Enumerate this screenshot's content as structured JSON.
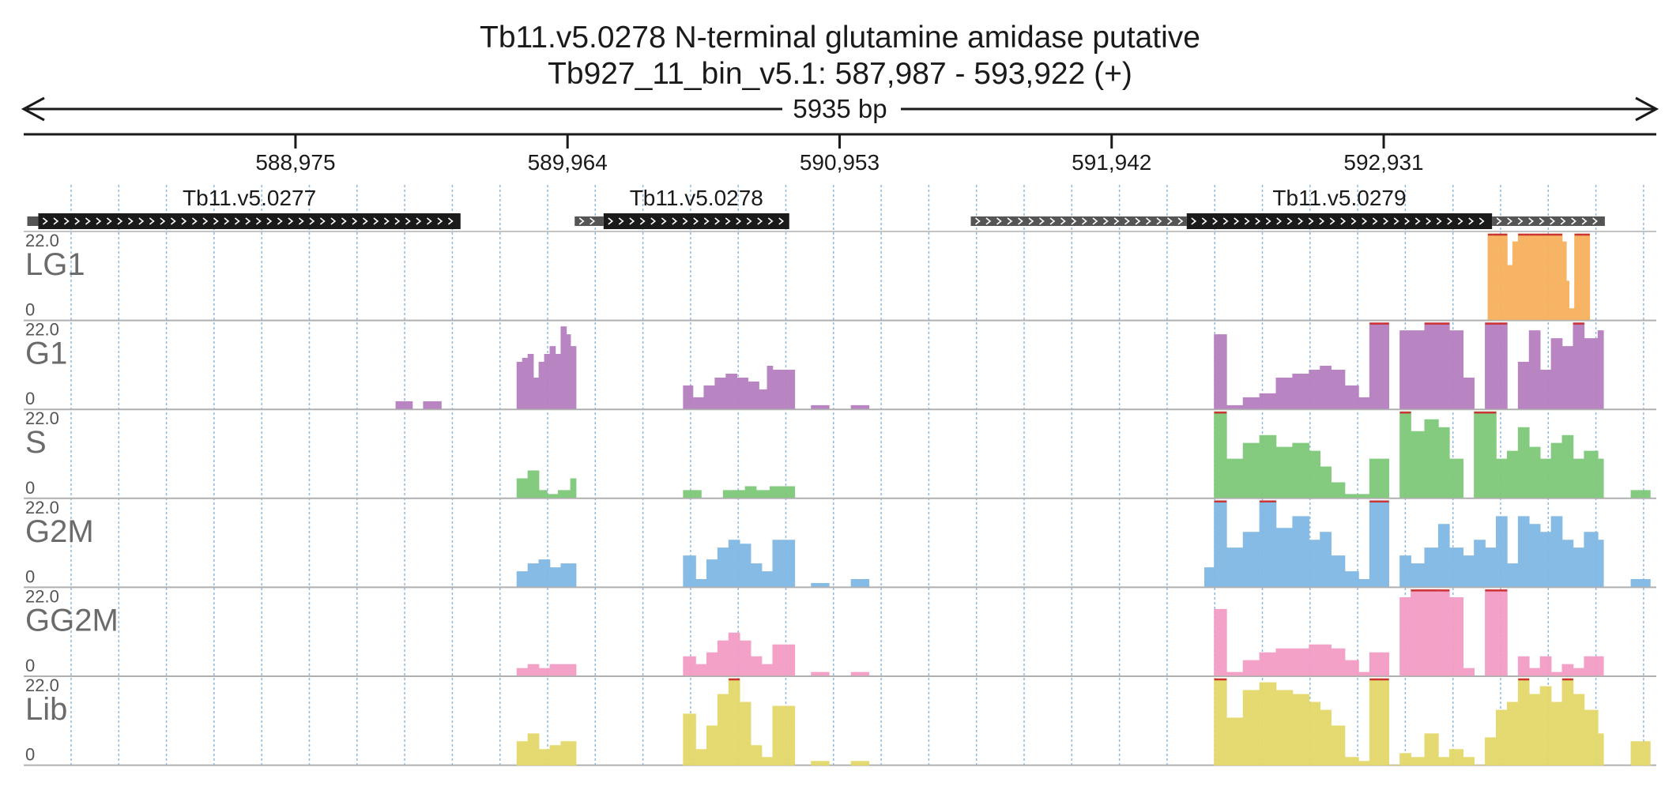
{
  "header": {
    "title": "Tb11.v5.0278  N-terminal glutamine amidase  putative",
    "locus": "Tb927_11_bin_v5.1: 587,987 - 593,922 (+)",
    "span": "5935 bp"
  },
  "colors": {
    "grid": "#8fb8e0",
    "track_border": "#b0b0b0",
    "gene_cds": "#1a1a1a",
    "gene_utr": "#555555",
    "clip_marker": "#cc3333"
  },
  "ruler": {
    "start": 587987,
    "end": 593922,
    "ticks": [
      {
        "pos": 588975,
        "label": "588,975"
      },
      {
        "pos": 589964,
        "label": "589,964"
      },
      {
        "pos": 590953,
        "label": "590,953"
      },
      {
        "pos": 591942,
        "label": "591,942"
      },
      {
        "pos": 592931,
        "label": "592,931"
      }
    ]
  },
  "genes": [
    {
      "name": "Tb11.v5.0277",
      "utr5": [
        588000,
        588040
      ],
      "cds": [
        588040,
        589575
      ],
      "utr3": null
    },
    {
      "name": "Tb11.v5.0278",
      "utr5": [
        589990,
        590095
      ],
      "cds": [
        590095,
        590770
      ],
      "utr3": null
    },
    {
      "name": "Tb11.v5.0279",
      "utr5": [
        591430,
        592215
      ],
      "cds": [
        592215,
        593325
      ],
      "utr3": [
        593325,
        593735
      ]
    }
  ],
  "tracks": [
    {
      "label": "LG1",
      "max": "22.0",
      "min": "0",
      "color": "#f7b15c",
      "segments": [
        {
          "x": [
            593310,
            593325,
            593365,
            593380,
            593400,
            593420,
            593440,
            593460,
            593480,
            593500,
            593520,
            593540,
            593560,
            593580,
            593595,
            593605,
            593625,
            593660
          ],
          "y": [
            22,
            22,
            22,
            14,
            20,
            22,
            22,
            22,
            22,
            22,
            22,
            22,
            22,
            20,
            10,
            3,
            22,
            22
          ]
        }
      ]
    },
    {
      "label": "G1",
      "max": "22.0",
      "min": "0",
      "color": "#b57fbf",
      "segments": [
        {
          "x": [
            589340,
            589380
          ],
          "y": [
            2,
            2
          ]
        },
        {
          "x": [
            589440,
            589485
          ],
          "y": [
            2,
            2
          ]
        },
        {
          "x": [
            589780,
            589800,
            589820,
            589840,
            589860,
            589880,
            589900,
            589920,
            589940,
            589960,
            589975
          ],
          "y": [
            12,
            13,
            14,
            8,
            12,
            14,
            16,
            14,
            21,
            19,
            16
          ]
        },
        {
          "x": [
            590385,
            590420,
            590460,
            590500,
            590540,
            590580,
            590620,
            590660,
            590690,
            590710,
            590730,
            590770
          ],
          "y": [
            6,
            3,
            6,
            8,
            9,
            8,
            7,
            5,
            11,
            10,
            10,
            10
          ]
        },
        {
          "x": [
            590850,
            590895
          ],
          "y": [
            1,
            1
          ]
        },
        {
          "x": [
            590995,
            591040
          ],
          "y": [
            1,
            1
          ]
        },
        {
          "x": [
            592315,
            592360,
            592420,
            592480,
            592540,
            592600,
            592660,
            592700,
            592740,
            592790,
            592840,
            592880,
            592925,
            592950,
            592990,
            593030,
            593080,
            593130,
            593170,
            593220,
            593260,
            593300,
            593340,
            593380,
            593420,
            593460,
            593500,
            593540,
            593580,
            593620,
            593660,
            593710
          ],
          "y": [
            19,
            1,
            3,
            4,
            8,
            9,
            10,
            11,
            10,
            6,
            3,
            22,
            22,
            0,
            20,
            20,
            22,
            22,
            20,
            8,
            0,
            22,
            22,
            0,
            12,
            20,
            10,
            18,
            16,
            22,
            18,
            20
          ]
        }
      ]
    },
    {
      "label": "S",
      "max": "22.0",
      "min": "0",
      "color": "#7ec97a",
      "segments": [
        {
          "x": [
            589780,
            589820,
            589860,
            589890,
            589930,
            589975
          ],
          "y": [
            5,
            7,
            2,
            1,
            2,
            5
          ]
        },
        {
          "x": [
            590385,
            590430
          ],
          "y": [
            2,
            2
          ]
        },
        {
          "x": [
            590530,
            590570,
            590610,
            590650,
            590700,
            590770
          ],
          "y": [
            2,
            2,
            3,
            2,
            3,
            3
          ]
        },
        {
          "x": [
            592315,
            592360,
            592420,
            592480,
            592540,
            592600,
            592660,
            592700,
            592740,
            592790,
            592840,
            592880,
            592925,
            592950,
            592990,
            593030,
            593080,
            593130,
            593170,
            593220,
            593260,
            593300,
            593340,
            593380,
            593420,
            593460,
            593500,
            593540,
            593580,
            593620,
            593660,
            593710
          ],
          "y": [
            22,
            10,
            14,
            16,
            13,
            14,
            12,
            8,
            4,
            1,
            1,
            10,
            10,
            0,
            22,
            17,
            20,
            18,
            10,
            0,
            22,
            22,
            10,
            12,
            18,
            13,
            10,
            14,
            16,
            10,
            12,
            10
          ]
        },
        {
          "x": [
            593830,
            593880
          ],
          "y": [
            2,
            2
          ]
        }
      ]
    },
    {
      "label": "G2M",
      "max": "22.0",
      "min": "0",
      "color": "#80b8e4",
      "segments": [
        {
          "x": [
            589780,
            589820,
            589860,
            589900,
            589940,
            589975
          ],
          "y": [
            4,
            6,
            7,
            5,
            6,
            6
          ]
        },
        {
          "x": [
            590385,
            590430,
            590470,
            590510,
            590550,
            590590,
            590630,
            590670,
            590710,
            590770
          ],
          "y": [
            8,
            2,
            7,
            10,
            12,
            11,
            6,
            4,
            12,
            12
          ]
        },
        {
          "x": [
            590850,
            590895
          ],
          "y": [
            1,
            1
          ]
        },
        {
          "x": [
            590995,
            591040
          ],
          "y": [
            2,
            2
          ]
        },
        {
          "x": [
            592280,
            592315,
            592360,
            592420,
            592480,
            592540,
            592600,
            592660,
            592700,
            592740,
            592790,
            592840,
            592880,
            592925,
            592950,
            592990,
            593030,
            593080,
            593130,
            593170,
            593220,
            593260,
            593300,
            593340,
            593380,
            593420,
            593460,
            593500,
            593540,
            593580,
            593620,
            593660,
            593710
          ],
          "y": [
            5,
            22,
            10,
            14,
            22,
            15,
            18,
            12,
            14,
            8,
            4,
            2,
            22,
            22,
            0,
            8,
            6,
            10,
            16,
            10,
            8,
            12,
            10,
            18,
            6,
            18,
            16,
            14,
            18,
            12,
            10,
            14,
            12
          ]
        },
        {
          "x": [
            593830,
            593880
          ],
          "y": [
            2,
            2
          ]
        }
      ]
    },
    {
      "label": "GG2M",
      "max": "22.0",
      "min": "0",
      "color": "#f39cc5",
      "segments": [
        {
          "x": [
            589780,
            589820,
            589860,
            589900,
            589940,
            589975
          ],
          "y": [
            2,
            3,
            2,
            3,
            3,
            3
          ]
        },
        {
          "x": [
            590385,
            590430,
            590470,
            590510,
            590550,
            590590,
            590630,
            590670,
            590710,
            590770
          ],
          "y": [
            5,
            3,
            6,
            9,
            11,
            9,
            5,
            3,
            8,
            8
          ]
        },
        {
          "x": [
            590850,
            590895
          ],
          "y": [
            1,
            1
          ]
        },
        {
          "x": [
            590995,
            591040
          ],
          "y": [
            1,
            1
          ]
        },
        {
          "x": [
            592315,
            592360,
            592420,
            592480,
            592540,
            592600,
            592660,
            592700,
            592740,
            592790,
            592840,
            592880,
            592925,
            592950,
            592990,
            593030,
            593080,
            593130,
            593170,
            593220,
            593260,
            593300,
            593340,
            593380,
            593420,
            593460,
            593500,
            593540,
            593580,
            593620,
            593660,
            593710
          ],
          "y": [
            17,
            1,
            4,
            6,
            7,
            7,
            8,
            8,
            7,
            4,
            1,
            6,
            6,
            0,
            20,
            22,
            22,
            22,
            20,
            2,
            0,
            22,
            22,
            0,
            5,
            2,
            5,
            1,
            3,
            2,
            5,
            5
          ]
        }
      ]
    },
    {
      "label": "Lib",
      "max": "22.0",
      "min": "0",
      "color": "#e3d96a",
      "segments": [
        {
          "x": [
            589780,
            589820,
            589860,
            589900,
            589940,
            589975
          ],
          "y": [
            6,
            8,
            4,
            5,
            6,
            6
          ]
        },
        {
          "x": [
            590385,
            590430,
            590470,
            590510,
            590550,
            590590,
            590630,
            590670,
            590710,
            590770
          ],
          "y": [
            13,
            4,
            10,
            18,
            22,
            16,
            5,
            2,
            15,
            15
          ]
        },
        {
          "x": [
            590850,
            590895
          ],
          "y": [
            1,
            1
          ]
        },
        {
          "x": [
            590995,
            591040
          ],
          "y": [
            1,
            1
          ]
        },
        {
          "x": [
            592315,
            592360,
            592420,
            592480,
            592540,
            592600,
            592660,
            592700,
            592740,
            592790,
            592840,
            592880,
            592925,
            592950,
            592990,
            593030,
            593080,
            593130,
            593170,
            593220,
            593260,
            593300,
            593340,
            593380,
            593420,
            593460,
            593500,
            593540,
            593580,
            593620,
            593660,
            593710
          ],
          "y": [
            22,
            12,
            19,
            21,
            19,
            18,
            16,
            14,
            10,
            2,
            1,
            22,
            22,
            0,
            3,
            2,
            8,
            2,
            4,
            2,
            0,
            7,
            14,
            16,
            22,
            18,
            20,
            16,
            22,
            18,
            14,
            8
          ]
        },
        {
          "x": [
            593830,
            593880
          ],
          "y": [
            6,
            6
          ]
        }
      ]
    }
  ]
}
